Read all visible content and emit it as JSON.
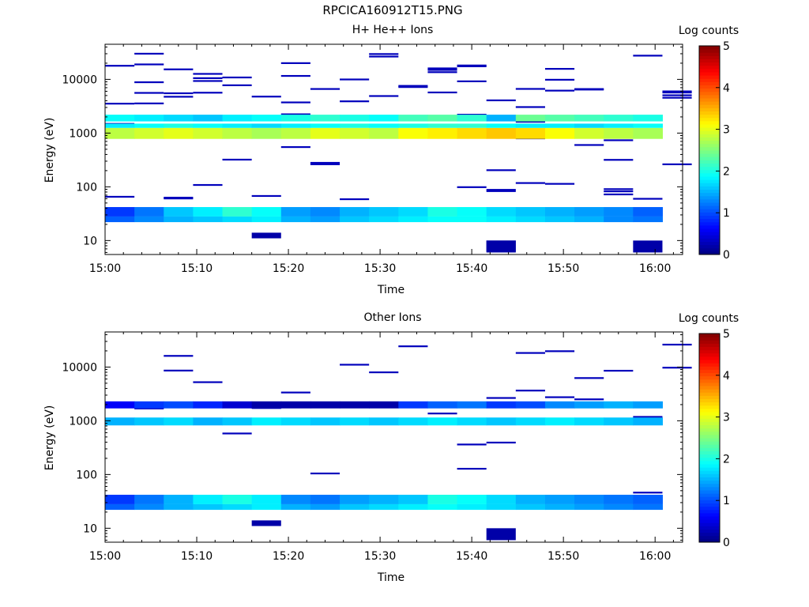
{
  "figure": {
    "title": "RPCICA160912T15.PNG"
  },
  "colorscale": {
    "label": "Log counts",
    "ticks": [
      "0",
      "1",
      "2",
      "3",
      "4",
      "5"
    ],
    "min": 0,
    "max": 5,
    "stops": [
      "#00007f",
      "#0000ff",
      "#007fff",
      "#00ffff",
      "#7fff7f",
      "#ffff00",
      "#ff7f00",
      "#ff0000",
      "#7f0000"
    ]
  },
  "chart_data": [
    {
      "type": "heatmap",
      "title": "H+ He++ Ions",
      "xlabel": "Time",
      "ylabel": "Energy (eV)",
      "x_ticks": [
        "15:00",
        "15:10",
        "15:20",
        "15:30",
        "15:40",
        "15:50",
        "16:00"
      ],
      "y_ticks": [
        "10",
        "100",
        "1000",
        "10000"
      ],
      "y_scale": "log",
      "ylim": [
        5.5,
        45000
      ],
      "xlim_minutes_after_1500": [
        0,
        63
      ],
      "time_bins_minutes_after_1500": [
        0.0,
        3.2,
        6.4,
        9.6,
        12.8,
        16.0,
        19.2,
        22.4,
        25.6,
        28.8,
        32.0,
        35.2,
        38.4,
        41.6,
        44.8,
        48.0,
        51.2,
        54.4,
        57.6,
        60.8
      ],
      "bands": [
        {
          "e_lo": 28,
          "e_hi": 42,
          "values": [
            0.9,
            1.2,
            1.6,
            1.8,
            2.1,
            1.9,
            1.4,
            1.3,
            1.5,
            1.6,
            1.7,
            2.0,
            1.9,
            1.7,
            1.6,
            1.5,
            1.4,
            1.3,
            1.1
          ]
        },
        {
          "e_lo": 22,
          "e_hi": 28,
          "values": [
            1.1,
            1.3,
            1.5,
            1.6,
            1.7,
            1.8,
            1.5,
            1.4,
            1.6,
            1.7,
            1.8,
            1.9,
            1.9,
            1.8,
            1.7,
            1.6,
            1.5,
            1.3,
            1.2
          ]
        },
        {
          "e_lo": 780,
          "e_hi": 1250,
          "values": [
            2.8,
            2.9,
            3.0,
            2.9,
            2.8,
            2.7,
            2.8,
            3.0,
            2.9,
            2.8,
            3.1,
            3.2,
            3.3,
            3.4,
            3.3,
            3.1,
            2.9,
            2.8,
            2.7
          ]
        },
        {
          "e_lo": 1250,
          "e_hi": 1500,
          "values": [
            1.8,
            1.9,
            2.0,
            1.9,
            1.8,
            1.7,
            1.8,
            1.9,
            2.0,
            1.9,
            2.0,
            2.1,
            2.1,
            1.9,
            1.8,
            1.8,
            1.7,
            1.8,
            1.9
          ]
        },
        {
          "e_lo": 1650,
          "e_hi": 2200,
          "values": [
            1.9,
            1.8,
            1.7,
            1.6,
            1.8,
            1.9,
            2.0,
            2.1,
            2.0,
            1.9,
            2.2,
            2.3,
            2.1,
            1.5,
            2.4,
            2.3,
            2.2,
            2.1,
            2.0
          ]
        }
      ],
      "sparse_threshold_level": 0.3
    },
    {
      "type": "heatmap",
      "title": "Other Ions",
      "xlabel": "Time",
      "ylabel": "Energy (eV)",
      "x_ticks": [
        "15:00",
        "15:10",
        "15:20",
        "15:30",
        "15:40",
        "15:50",
        "16:00"
      ],
      "y_ticks": [
        "10",
        "100",
        "1000",
        "10000"
      ],
      "y_scale": "log",
      "ylim": [
        5.5,
        45000
      ],
      "xlim_minutes_after_1500": [
        0,
        63
      ],
      "time_bins_minutes_after_1500": [
        0.0,
        3.2,
        6.4,
        9.6,
        12.8,
        16.0,
        19.2,
        22.4,
        25.6,
        28.8,
        32.0,
        35.2,
        38.4,
        41.6,
        44.8,
        48.0,
        51.2,
        54.4,
        57.6,
        60.8
      ],
      "bands": [
        {
          "e_lo": 28,
          "e_hi": 42,
          "values": [
            0.9,
            1.2,
            1.5,
            1.8,
            2.0,
            1.8,
            1.3,
            1.2,
            1.4,
            1.5,
            1.6,
            2.0,
            1.9,
            1.7,
            1.5,
            1.4,
            1.3,
            1.2,
            1.1
          ]
        },
        {
          "e_lo": 22,
          "e_hi": 28,
          "values": [
            1.1,
            1.3,
            1.5,
            1.6,
            1.7,
            1.8,
            1.5,
            1.4,
            1.6,
            1.7,
            1.8,
            1.9,
            1.8,
            1.7,
            1.6,
            1.5,
            1.4,
            1.3,
            1.2
          ]
        },
        {
          "e_lo": 820,
          "e_hi": 1150,
          "values": [
            1.5,
            1.6,
            1.7,
            1.5,
            1.6,
            1.8,
            1.7,
            1.6,
            1.7,
            1.6,
            1.7,
            1.8,
            1.7,
            1.6,
            1.7,
            1.8,
            1.7,
            1.6,
            1.5
          ]
        },
        {
          "e_lo": 1700,
          "e_hi": 2300,
          "values": [
            0.6,
            0.9,
            1.0,
            0.8,
            0.4,
            0.2,
            0.2,
            0.2,
            0.2,
            0.2,
            0.9,
            1.1,
            1.2,
            0.9,
            1.0,
            1.3,
            1.4,
            1.5,
            1.4
          ]
        }
      ],
      "sparse_threshold_level": 0.3
    }
  ]
}
